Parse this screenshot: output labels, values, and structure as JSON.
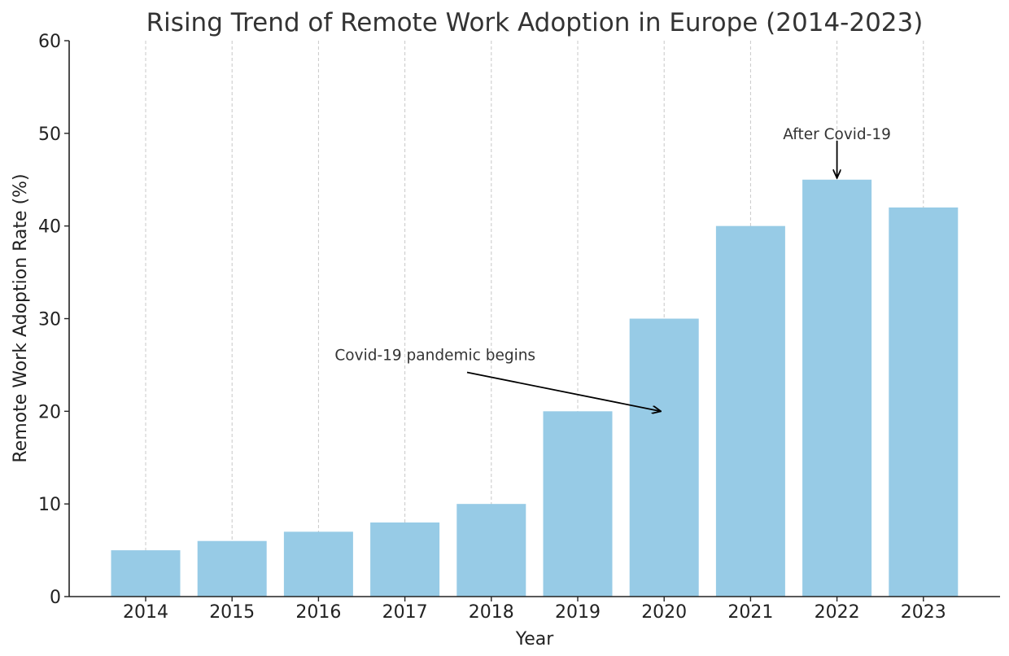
{
  "colors": {
    "bar": "#97cbe6",
    "grid": "#c8c8c8",
    "axis": "#222222",
    "text": "#333333"
  },
  "chart_data": {
    "type": "bar",
    "title": "Rising Trend of Remote Work Adoption in Europe (2014-2023)",
    "xlabel": "Year",
    "ylabel": "Remote Work Adoption Rate (%)",
    "categories": [
      "2014",
      "2015",
      "2016",
      "2017",
      "2018",
      "2019",
      "2020",
      "2021",
      "2022",
      "2023"
    ],
    "values": [
      5,
      6,
      7,
      8,
      10,
      20,
      30,
      40,
      45,
      42
    ],
    "ylim": [
      0,
      60
    ],
    "yticks": [
      0,
      10,
      20,
      30,
      40,
      50,
      60
    ],
    "grid": "vertical dashed",
    "annotations": [
      {
        "text": "Covid-19 pandemic begins",
        "text_x": "2016",
        "text_y": 25,
        "target_x": "2020",
        "target_y": 20
      },
      {
        "text": "After Covid-19",
        "text_x": "2022",
        "text_y": 50,
        "target_x": "2022",
        "target_y": 45
      }
    ]
  }
}
